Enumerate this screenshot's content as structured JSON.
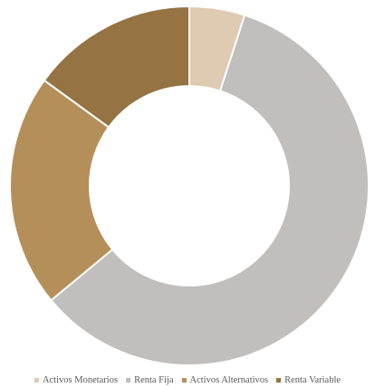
{
  "chart_data": {
    "type": "pie",
    "donut": true,
    "start_angle_deg": 0,
    "direction": "clockwise",
    "slices": [
      {
        "label": "Activos Monetarios",
        "value": 5,
        "color": "#dfcbb2"
      },
      {
        "label": "Renta Fija",
        "value": 59,
        "color": "#c0bfbe"
      },
      {
        "label": "Activos Alternativos",
        "value": 21,
        "color": "#b58f5a"
      },
      {
        "label": "Renta Variable",
        "value": 15,
        "color": "#957343"
      }
    ],
    "legend_position": "bottom",
    "separator_color": "#ffffff"
  }
}
